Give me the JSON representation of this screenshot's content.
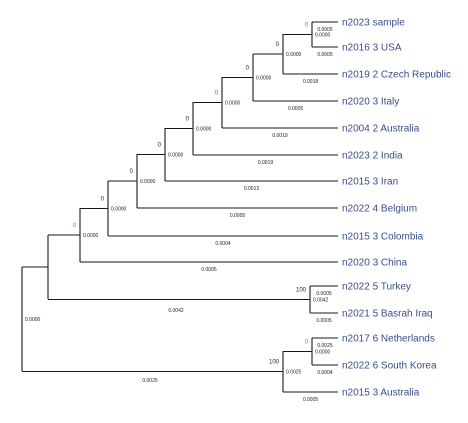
{
  "colors": {
    "line": "#1a1a1a",
    "leaf_text": "#3a4f8a",
    "branch_length_text": "#222222",
    "bootstrap_zero": "#c8641e",
    "bootstrap_one": "#2a6fbf",
    "bootstrap_default": "#222222"
  },
  "tree": {
    "leaves": [
      "n2023 sample",
      "n2016 3 USA",
      "n2019 2 Czech Republic",
      "n2020 3 Italy",
      "n2004 2 Australia",
      "n2023 2 India",
      "n2015 3 Iran",
      "n2022 4 Belgium",
      "n2015 3 Colombia",
      "n2020 3 China",
      "n2022 5 Turkey",
      "n2021 5 Basrah Iraq",
      "n2017 6 Netherlands",
      "n2022 6 South Korea",
      "n2015 3 Australia"
    ],
    "leaf_branch_lengths": [
      "0.0005",
      "0.0005",
      "0.0018",
      "0.0005",
      "0.0019",
      "0.0019",
      "0.0013",
      "0.0005",
      "0.0004",
      "0.0005",
      "0.0005",
      "0.0005",
      "0.0025",
      "0.0004",
      "0.0005"
    ],
    "internal_nodes": [
      {
        "id": "n1",
        "bootstrap": "0",
        "bootstrap_color": "#c8641e",
        "branch_length": "0.0000"
      },
      {
        "id": "n2",
        "bootstrap": "0",
        "bootstrap_color": "#222222",
        "branch_length": "0.0000"
      },
      {
        "id": "n3",
        "bootstrap": "0",
        "bootstrap_color": "#222222",
        "branch_length": "0.0000"
      },
      {
        "id": "n4",
        "bootstrap": "0",
        "bootstrap_color": "#2a6fbf",
        "branch_length": "0.0000"
      },
      {
        "id": "n5",
        "bootstrap": "0",
        "bootstrap_color": "#222222",
        "branch_length": "0.0000"
      },
      {
        "id": "n6",
        "bootstrap": "0",
        "bootstrap_color": "#222222",
        "branch_length": "0.0000"
      },
      {
        "id": "n7",
        "bootstrap": "0",
        "bootstrap_color": "#222222",
        "branch_length": "0.0000"
      },
      {
        "id": "n8",
        "bootstrap": "0",
        "bootstrap_color": "#222222",
        "branch_length": "0.0000"
      },
      {
        "id": "n9",
        "bootstrap": "0",
        "bootstrap_color": "#c8641e",
        "branch_length": "0.0000"
      },
      {
        "id": "n10",
        "bootstrap": "100",
        "bootstrap_color": "#222222",
        "branch_length": "0.0042"
      },
      {
        "id": "n11",
        "bootstrap": "0",
        "bootstrap_color": "#c8641e",
        "branch_length": "0.0000"
      },
      {
        "id": "n12",
        "bootstrap": "100",
        "bootstrap_color": "#222222",
        "branch_length": "0.0025"
      },
      {
        "id": "root",
        "bootstrap": "",
        "bootstrap_color": "#222222",
        "branch_length": "0.0000"
      }
    ]
  }
}
